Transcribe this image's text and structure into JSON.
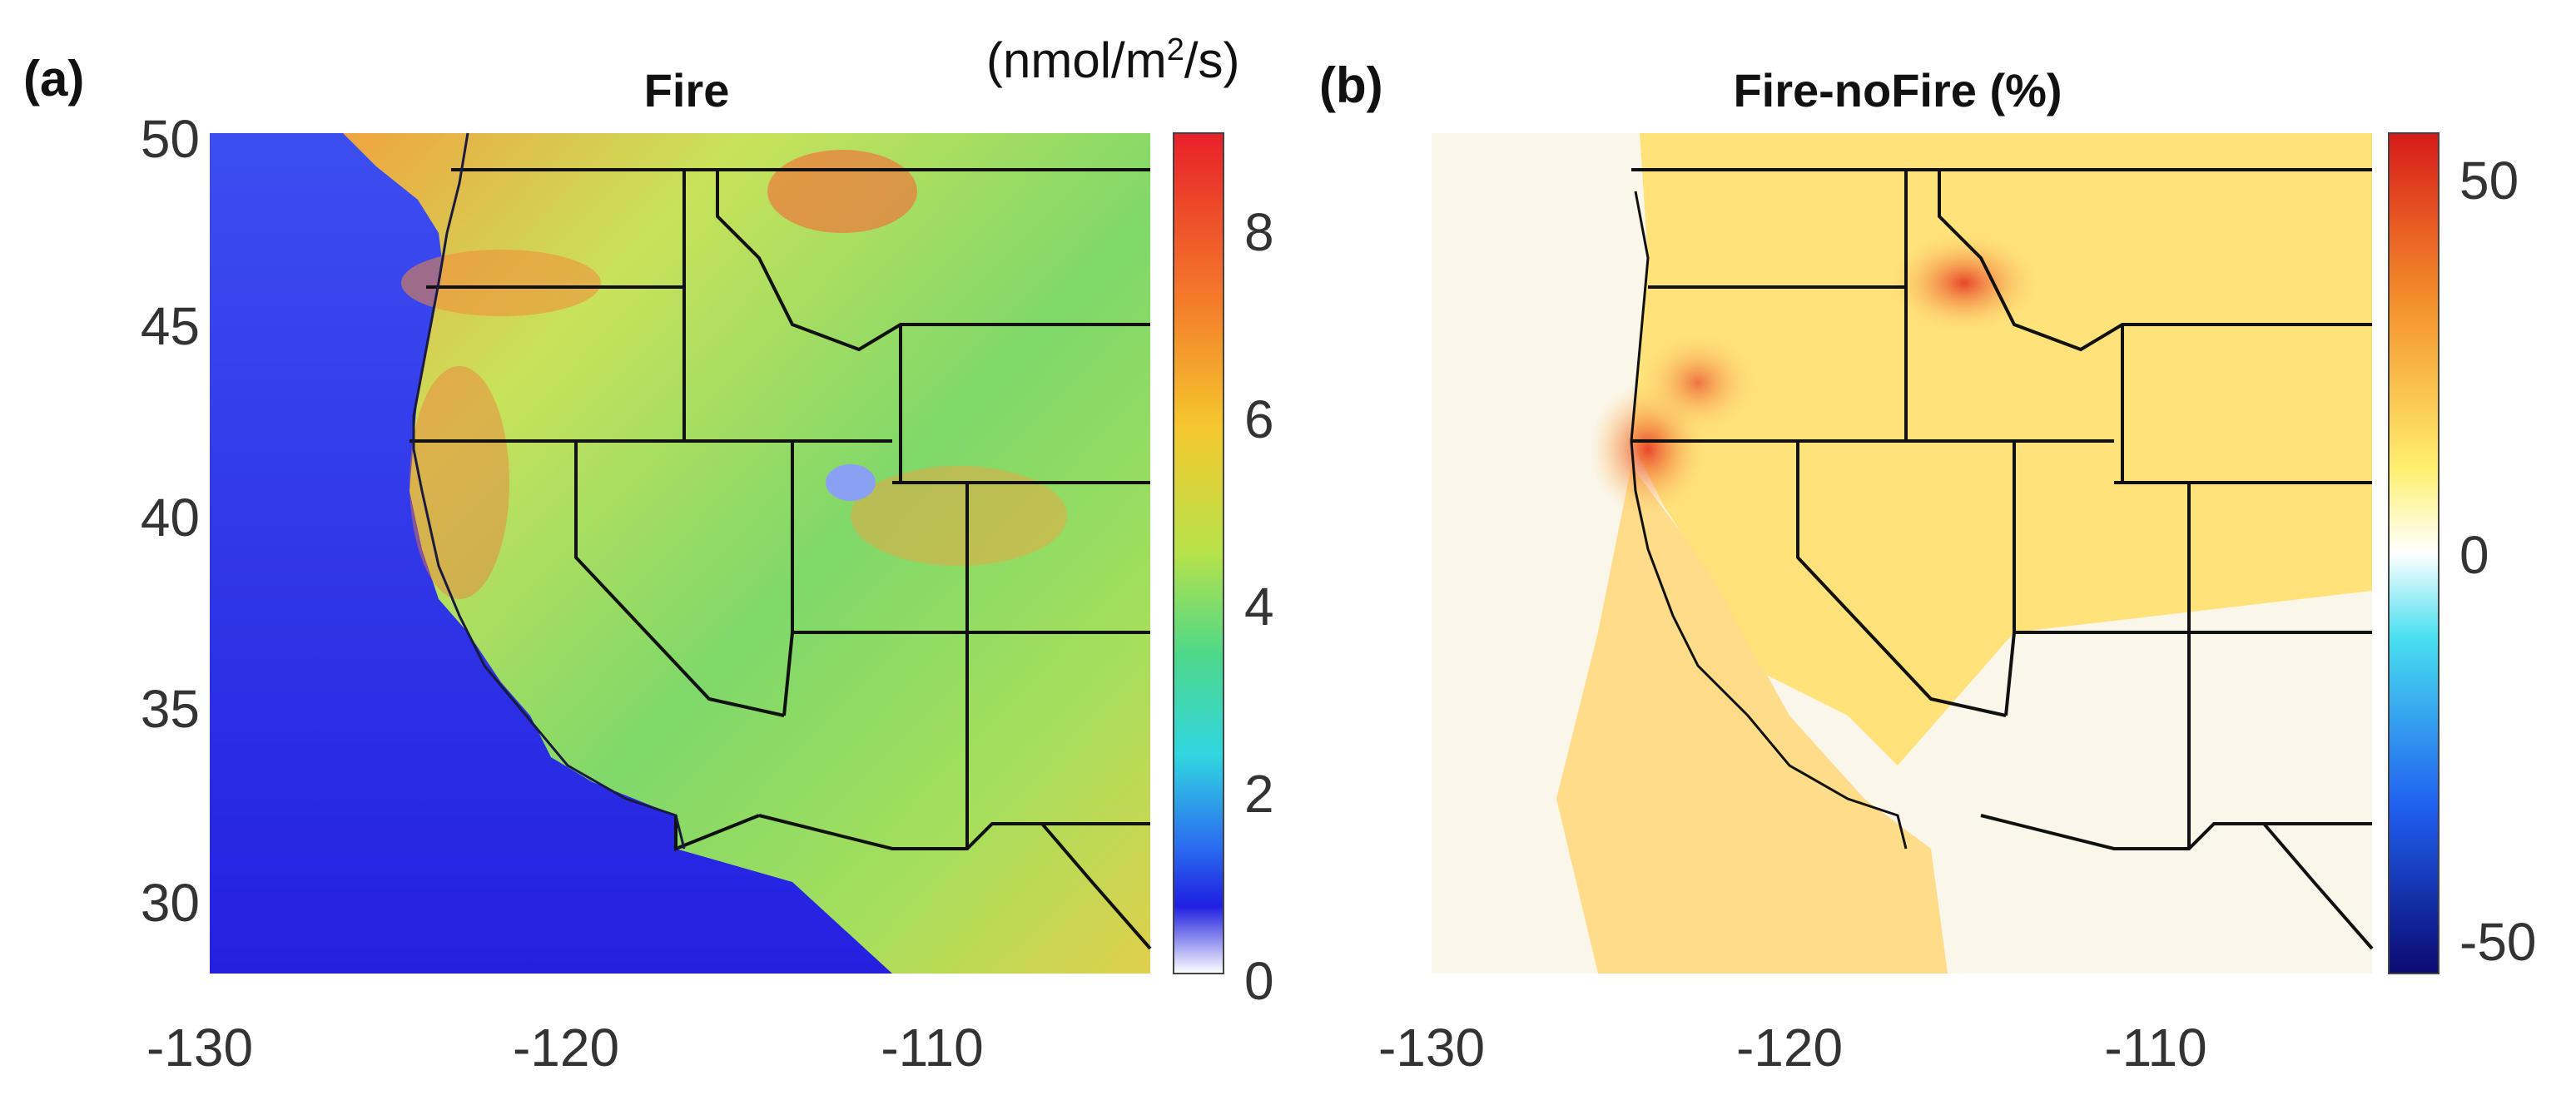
{
  "panels": [
    {
      "id": "a",
      "label": "(a)",
      "title": "Fire",
      "units": {
        "pre": "(nmol/m",
        "sup": "2",
        "post": "/s)"
      },
      "colorbar": {
        "colormap": "jet-white-low",
        "range": [
          0,
          9
        ],
        "ticks": [
          "8",
          "6",
          "4",
          "2",
          "0"
        ]
      }
    },
    {
      "id": "b",
      "label": "(b)",
      "title": "Fire-noFire (%)",
      "colorbar": {
        "colormap": "diverging-blue-white-red",
        "range": [
          -55,
          55
        ],
        "ticks": [
          "50",
          "0",
          "-50"
        ]
      }
    }
  ],
  "axes": {
    "lon_range": [
      -130,
      -104
    ],
    "lat_range": [
      28,
      50
    ],
    "y_ticks": [
      "50",
      "45",
      "40",
      "35",
      "30"
    ],
    "x_ticks_a": [
      "-130",
      "-120",
      "-110"
    ],
    "x_ticks_b": [
      "-130",
      "-120",
      "-110"
    ]
  },
  "colors": {
    "ocean_a": "#3a3ae6",
    "land_a": "#7fd86a",
    "ocean_b": "#fbf6ea",
    "land_b": "#ffe27a",
    "boundary": "#111111"
  }
}
